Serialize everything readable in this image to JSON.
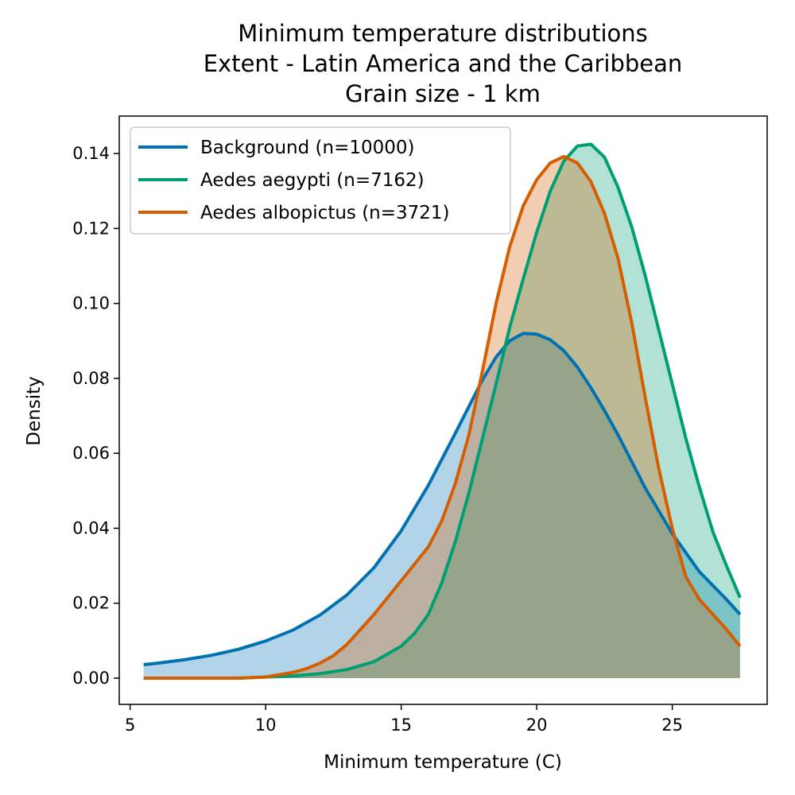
{
  "chart_data": {
    "type": "area",
    "title": [
      "Minimum temperature distributions",
      "Extent - Latin America and the Caribbean",
      "Grain size - 1 km"
    ],
    "xlabel": "Minimum temperature (C)",
    "ylabel": "Density",
    "xlim": [
      4.6,
      28.5
    ],
    "ylim": [
      -0.007,
      0.15
    ],
    "xticks": [
      5,
      10,
      15,
      20,
      25
    ],
    "yticks": [
      0.0,
      0.02,
      0.04,
      0.06,
      0.08,
      0.1,
      0.12,
      0.14
    ],
    "xtick_labels": [
      "5",
      "10",
      "15",
      "20",
      "25"
    ],
    "ytick_labels": [
      "0.00",
      "0.02",
      "0.04",
      "0.06",
      "0.08",
      "0.10",
      "0.12",
      "0.14"
    ],
    "grid": false,
    "legend_position": "top-left",
    "series": [
      {
        "name": "Background (n=10000)",
        "color": "#0072b2",
        "x": [
          5.5,
          6,
          7,
          8,
          9,
          10,
          11,
          12,
          13,
          14,
          15,
          16,
          17,
          18,
          18.5,
          19,
          19.5,
          20,
          20.5,
          21,
          21.5,
          22,
          22.5,
          23,
          24,
          25,
          26,
          27,
          27.5
        ],
        "y": [
          0.0036,
          0.004,
          0.0049,
          0.0061,
          0.0077,
          0.0099,
          0.0128,
          0.0168,
          0.0222,
          0.0295,
          0.0393,
          0.0514,
          0.0654,
          0.0796,
          0.0857,
          0.09,
          0.092,
          0.0918,
          0.0903,
          0.0874,
          0.083,
          0.0775,
          0.0714,
          0.0649,
          0.0508,
          0.0386,
          0.0284,
          0.021,
          0.017
        ]
      },
      {
        "name": "Aedes aegypti (n=7162)",
        "color": "#009e73",
        "x": [
          5.5,
          9,
          10,
          11,
          12,
          13,
          14,
          15,
          15.5,
          16,
          16.5,
          17,
          17.5,
          18,
          18.5,
          19,
          19.5,
          20,
          20.5,
          21,
          21.5,
          22,
          22.5,
          23,
          23.5,
          24,
          24.5,
          25,
          25.5,
          26,
          26.5,
          27,
          27.5
        ],
        "y": [
          0.0,
          0.0,
          0.0003,
          0.0006,
          0.0012,
          0.0023,
          0.0044,
          0.0085,
          0.012,
          0.017,
          0.0255,
          0.0365,
          0.0495,
          0.064,
          0.0785,
          0.0935,
          0.1065,
          0.119,
          0.13,
          0.138,
          0.142,
          0.1425,
          0.139,
          0.131,
          0.1205,
          0.1075,
          0.093,
          0.0785,
          0.064,
          0.051,
          0.039,
          0.03,
          0.0215
        ]
      },
      {
        "name": "Aedes albopictus (n=3721)",
        "color": "#d55e00",
        "x": [
          5.5,
          9,
          10,
          11,
          11.5,
          12,
          12.5,
          13,
          14,
          15,
          16,
          16.5,
          17,
          17.5,
          18,
          18.5,
          19,
          19.5,
          20,
          20.5,
          21,
          21.5,
          22,
          22.5,
          23,
          23.5,
          24,
          24.5,
          25,
          25.5,
          26,
          27,
          27.5
        ],
        "y": [
          0.0,
          0.0,
          0.0003,
          0.0015,
          0.0025,
          0.004,
          0.006,
          0.009,
          0.017,
          0.026,
          0.035,
          0.042,
          0.052,
          0.065,
          0.082,
          0.1,
          0.115,
          0.126,
          0.133,
          0.1375,
          0.1392,
          0.1375,
          0.1325,
          0.124,
          0.112,
          0.095,
          0.075,
          0.056,
          0.04,
          0.027,
          0.021,
          0.013,
          0.0085
        ]
      }
    ]
  }
}
